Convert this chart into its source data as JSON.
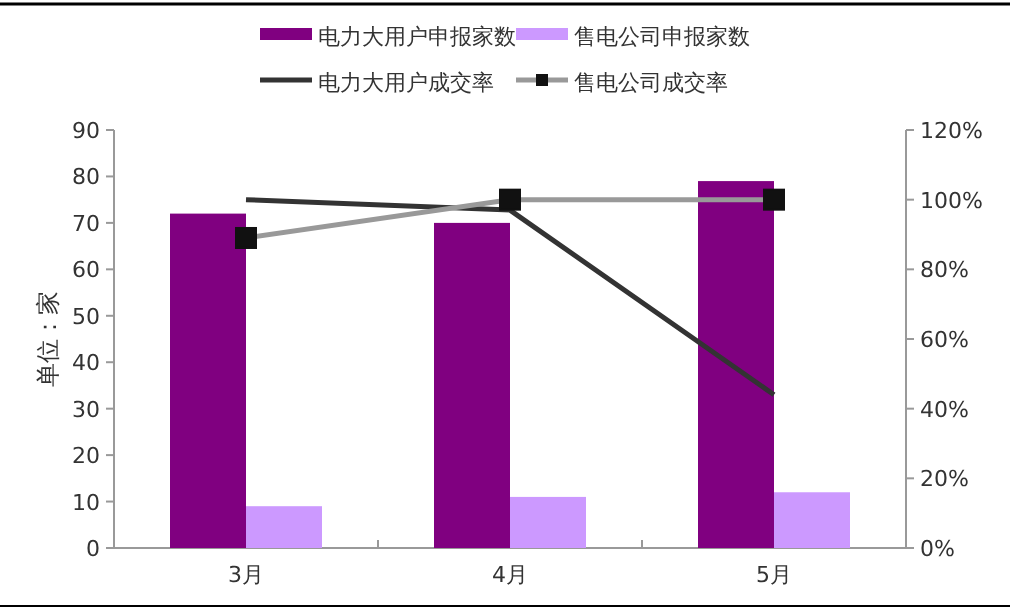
{
  "chart_data": {
    "type": "bar",
    "categories": [
      "3月",
      "4月",
      "5月"
    ],
    "ylabel": "单位：家",
    "series": [
      {
        "name": "电力大用户申报家数",
        "color": "#800080",
        "values": [
          72,
          70,
          79
        ]
      },
      {
        "name": "售电公司申报家数",
        "color": "#cc99ff",
        "values": [
          9,
          11,
          12
        ]
      },
      {
        "name": "电力大用户成交率",
        "type": "line",
        "axis": "y2",
        "color": "#333333",
        "marker": "none",
        "values": [
          100,
          97,
          44
        ]
      },
      {
        "name": "售电公司成交率",
        "type": "line",
        "axis": "y2",
        "color": "#999999",
        "marker": "square",
        "values": [
          89,
          100,
          100
        ]
      }
    ],
    "ylim": [
      0,
      90
    ],
    "yticks": [
      0,
      10,
      20,
      30,
      40,
      50,
      60,
      70,
      80,
      90
    ],
    "y2lim": [
      0,
      120
    ],
    "y2ticks": [
      {
        "value": 0,
        "label": "0%"
      },
      {
        "value": 20,
        "label": "20%"
      },
      {
        "value": 40,
        "label": "40%"
      },
      {
        "value": 60,
        "label": "60%"
      },
      {
        "value": 80,
        "label": "80%"
      },
      {
        "value": 100,
        "label": "100%"
      },
      {
        "value": 120,
        "label": "120%"
      }
    ],
    "legend": "top"
  }
}
